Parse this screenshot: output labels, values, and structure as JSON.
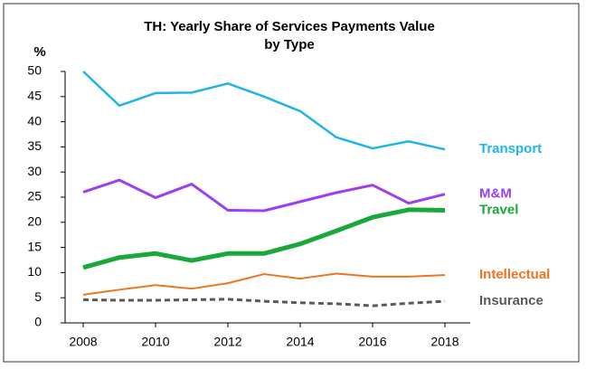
{
  "chart_data": {
    "type": "line",
    "title": [
      "TH: Yearly Share of Services Payments Value",
      "by Type"
    ],
    "ylabel": "%",
    "x": [
      2008,
      2009,
      2010,
      2011,
      2012,
      2013,
      2014,
      2015,
      2016,
      2017,
      2018
    ],
    "xlim": [
      2007.5,
      2018.7
    ],
    "xticks": [
      2008,
      2010,
      2012,
      2014,
      2016,
      2018
    ],
    "ylim": [
      0,
      50
    ],
    "yticks": [
      0,
      5,
      10,
      15,
      20,
      25,
      30,
      35,
      40,
      45,
      50
    ],
    "grid": false,
    "series": [
      {
        "name": "Transport",
        "color": "#1fb4ea",
        "values": [
          50,
          43.2,
          45.7,
          45.8,
          47.6,
          45,
          42.1,
          36.9,
          34.7,
          36.1,
          34.5
        ]
      },
      {
        "name": "M&M",
        "color": "#9b3ff0",
        "values": [
          26,
          28.4,
          24.9,
          27.6,
          22.4,
          22.3,
          24.1,
          25.9,
          27.4,
          23.8,
          25.6
        ]
      },
      {
        "name": "Travel",
        "color": "#1aa83a",
        "values": [
          11,
          13,
          13.8,
          12.4,
          13.8,
          13.8,
          15.7,
          18.3,
          21,
          22.5,
          22.4
        ]
      },
      {
        "name": "Intellectual",
        "color": "#f07320",
        "values": [
          5.6,
          6.6,
          7.5,
          6.8,
          7.9,
          9.7,
          8.8,
          9.8,
          9.2,
          9.2,
          9.5
        ]
      },
      {
        "name": "Insurance",
        "color": "#595959",
        "dashed": true,
        "values": [
          4.6,
          4.5,
          4.5,
          4.6,
          4.7,
          4.3,
          4.0,
          3.8,
          3.4,
          3.9,
          4.3
        ]
      }
    ]
  }
}
